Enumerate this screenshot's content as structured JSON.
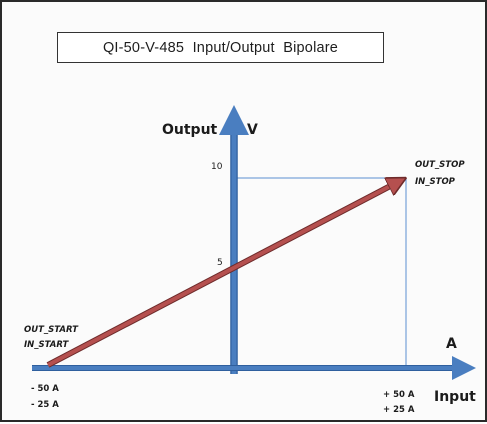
{
  "title": "QI-50-V-485  Input/Output  Bipolare",
  "axes": {
    "y_name": "Output",
    "y_unit": "V",
    "x_name": "Input",
    "x_unit": "A"
  },
  "ticks": {
    "y_top": "10",
    "y_mid": "5",
    "x_left_1": "- 50 A",
    "x_left_2": "- 25 A",
    "x_right_1": "+ 50 A",
    "x_right_2": "+ 25 A"
  },
  "points": {
    "start_1": "OUT_START",
    "start_2": "IN_START",
    "stop_1": "OUT_STOP",
    "stop_2": "IN_STOP"
  },
  "colors": {
    "axis": "#4a7ec0",
    "axis_edge": "#2f5f9e",
    "line": "#b5504f",
    "line_edge": "#6e2b2b",
    "guide": "#5b8fd0"
  }
}
